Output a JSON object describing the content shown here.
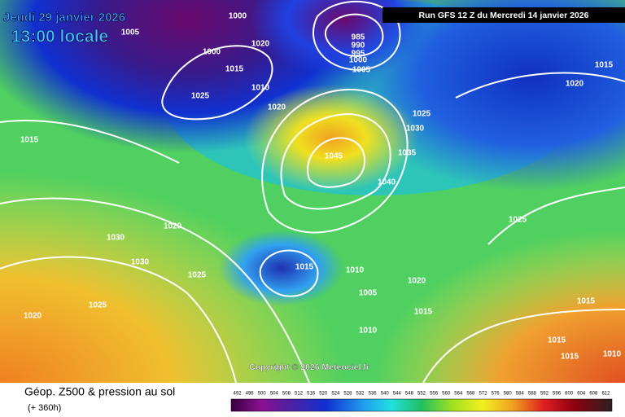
{
  "header": {
    "valid_date": "Jeudi 29 janvier 2026",
    "valid_time": "13:00 locale",
    "run": "Run GFS 12 Z du Mercredi 14 janvier 2026"
  },
  "copyright": "Copyright © 2026 Meteociel.fr",
  "footer": {
    "title": "Géop. Z500 & pression au sol",
    "lead": "(+ 360h)"
  },
  "scale_labels": [
    "492",
    "496",
    "500",
    "504",
    "508",
    "512",
    "516",
    "520",
    "524",
    "528",
    "532",
    "536",
    "540",
    "544",
    "548",
    "552",
    "556",
    "560",
    "564",
    "568",
    "572",
    "576",
    "580",
    "584",
    "588",
    "592",
    "596",
    "600",
    "604",
    "608",
    "612"
  ],
  "isobar_labels": [
    "1005",
    "1000",
    "1020",
    "1000",
    "1015",
    "1010",
    "1025",
    "1020",
    "985",
    "990",
    "995",
    "1000",
    "1005",
    "1025",
    "1030",
    "1035",
    "1045",
    "1040",
    "1015",
    "1020",
    "1030",
    "1030",
    "1025",
    "1015",
    "1010",
    "1005",
    "1020",
    "1015",
    "1010",
    "1025",
    "1020",
    "1015",
    "1015",
    "1015",
    "1015",
    "1010",
    "1020",
    "1025"
  ]
}
